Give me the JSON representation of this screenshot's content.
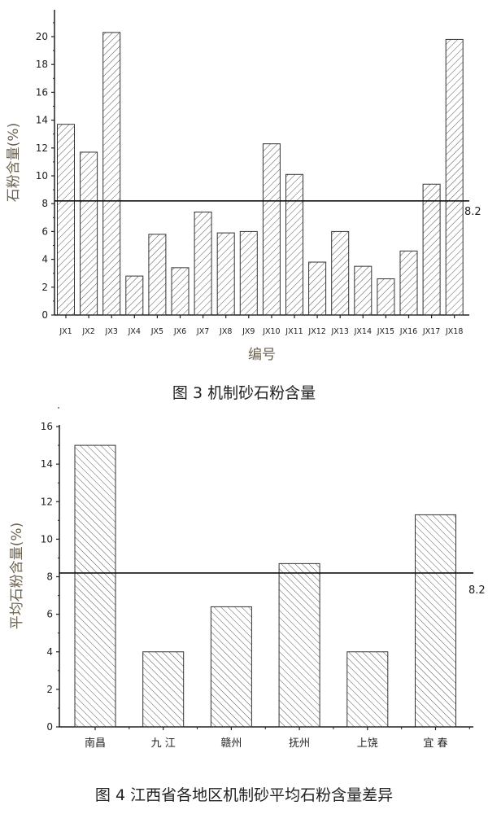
{
  "chart_data": [
    {
      "type": "bar",
      "title": "",
      "caption": "图 3   机制砂石粉含量",
      "xlabel": "编号",
      "ylabel": "石粉含量(%)",
      "categories": [
        "JX1",
        "JX2",
        "JX3",
        "JX4",
        "JX5",
        "JX6",
        "JX7",
        "JX8",
        "JX9",
        "JX10",
        "JX11",
        "JX12",
        "JX13",
        "JX14",
        "JX15",
        "JX16",
        "JX17",
        "JX18"
      ],
      "values": [
        13.7,
        11.7,
        20.3,
        2.8,
        5.8,
        3.4,
        7.4,
        5.9,
        6.0,
        12.3,
        10.1,
        3.8,
        6.0,
        3.5,
        2.6,
        4.6,
        9.4,
        19.8
      ],
      "ylim": [
        0,
        22
      ],
      "yticks": [
        "0",
        "2",
        "4",
        "6",
        "8",
        "10",
        "12",
        "14",
        "16",
        "18",
        "20"
      ],
      "reference_line": {
        "value": 8.2,
        "label": "8.2"
      },
      "hatch": "forward-diagonal",
      "grid": false
    },
    {
      "type": "bar",
      "title": "",
      "caption": "图 4  江西省各地区机制砂平均石粉含量差异",
      "xlabel": "",
      "ylabel": "平均石粉含量(%)",
      "categories": [
        "南昌",
        "九 江",
        "赣州",
        "抚州",
        "上饶",
        "宜 春"
      ],
      "values": [
        15.0,
        4.0,
        6.4,
        8.7,
        4.0,
        11.3
      ],
      "ylim": [
        0,
        16
      ],
      "yticks": [
        "0",
        "2",
        "4",
        "6",
        "8",
        "10",
        "12",
        "14",
        "16"
      ],
      "reference_line": {
        "value": 8.2,
        "label": "8.2"
      },
      "hatch": "back-diagonal",
      "grid": false
    }
  ],
  "colors": {
    "axis": "#222222",
    "bar_stroke": "#333333",
    "ylabel": "#6b6250"
  }
}
